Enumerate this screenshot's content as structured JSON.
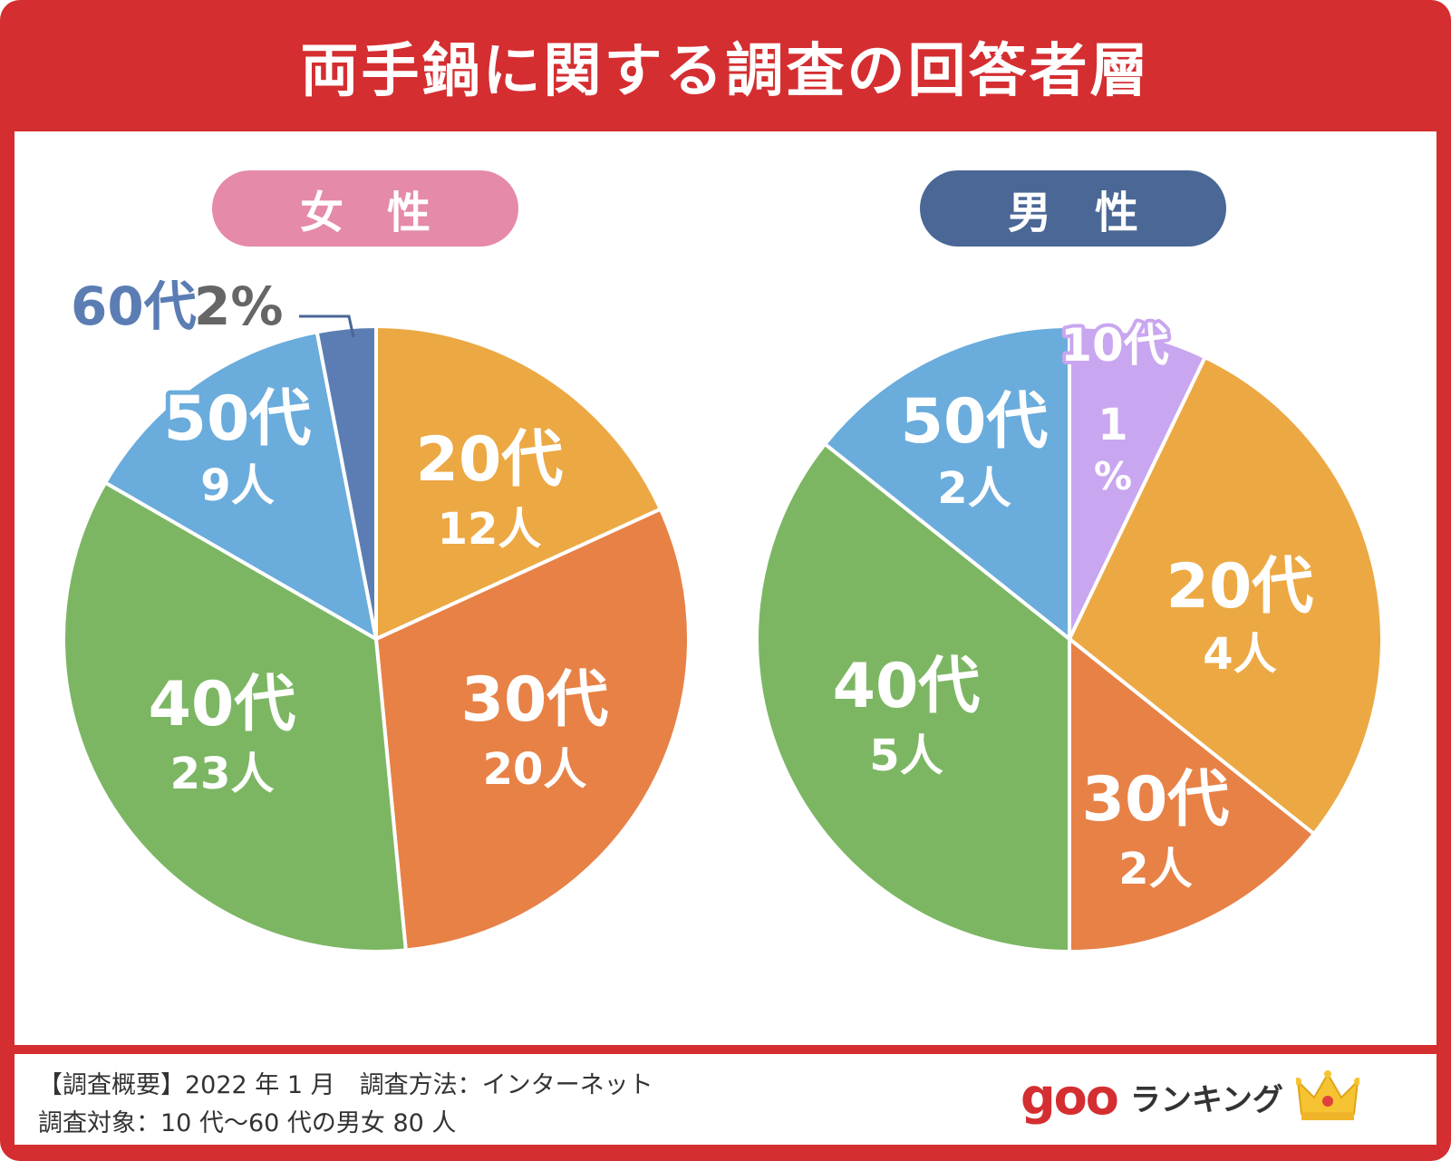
{
  "title": "両手鍋に関する調査の回答者層",
  "footer": {
    "line1": "【調査概要】2022 年 1 月　調査方法：インターネット",
    "line2": "調査対象：10 代〜60 代の男女 80 人",
    "brand_goo": "goo",
    "brand_rank": "ランキング",
    "crown_icon": "crown-icon"
  },
  "colors": {
    "frame": "#d42e31",
    "female_pill": "#e58aa9",
    "male_pill": "#4a6796",
    "teens": "#c9a6f0",
    "twenties": "#eca843",
    "thirties": "#e78146",
    "forties": "#7cb663",
    "fifties": "#6aacdc",
    "sixties": "#5b7db3"
  },
  "chart_data": [
    {
      "type": "pie",
      "title": "女　性",
      "slices": [
        {
          "label": "20代",
          "count_label": "12人",
          "value": 12,
          "color": "#eca843"
        },
        {
          "label": "30代",
          "count_label": "20人",
          "value": 20,
          "color": "#e78146"
        },
        {
          "label": "40代",
          "count_label": "23人",
          "value": 23,
          "color": "#7cb663"
        },
        {
          "label": "50代",
          "count_label": "9人",
          "value": 9,
          "color": "#6aacdc"
        },
        {
          "label": "60代",
          "count_label": "2%",
          "value": 2,
          "color": "#5b7db3"
        }
      ]
    },
    {
      "type": "pie",
      "title": "男　性",
      "slices": [
        {
          "label": "10代",
          "count_label": "1%",
          "value": 1,
          "color": "#c9a6f0"
        },
        {
          "label": "20代",
          "count_label": "4人",
          "value": 4,
          "color": "#eca843"
        },
        {
          "label": "30代",
          "count_label": "2人",
          "value": 2,
          "color": "#e78146"
        },
        {
          "label": "40代",
          "count_label": "5人",
          "value": 5,
          "color": "#7cb663"
        },
        {
          "label": "50代",
          "count_label": "2人",
          "value": 2,
          "color": "#6aacdc"
        }
      ]
    }
  ]
}
